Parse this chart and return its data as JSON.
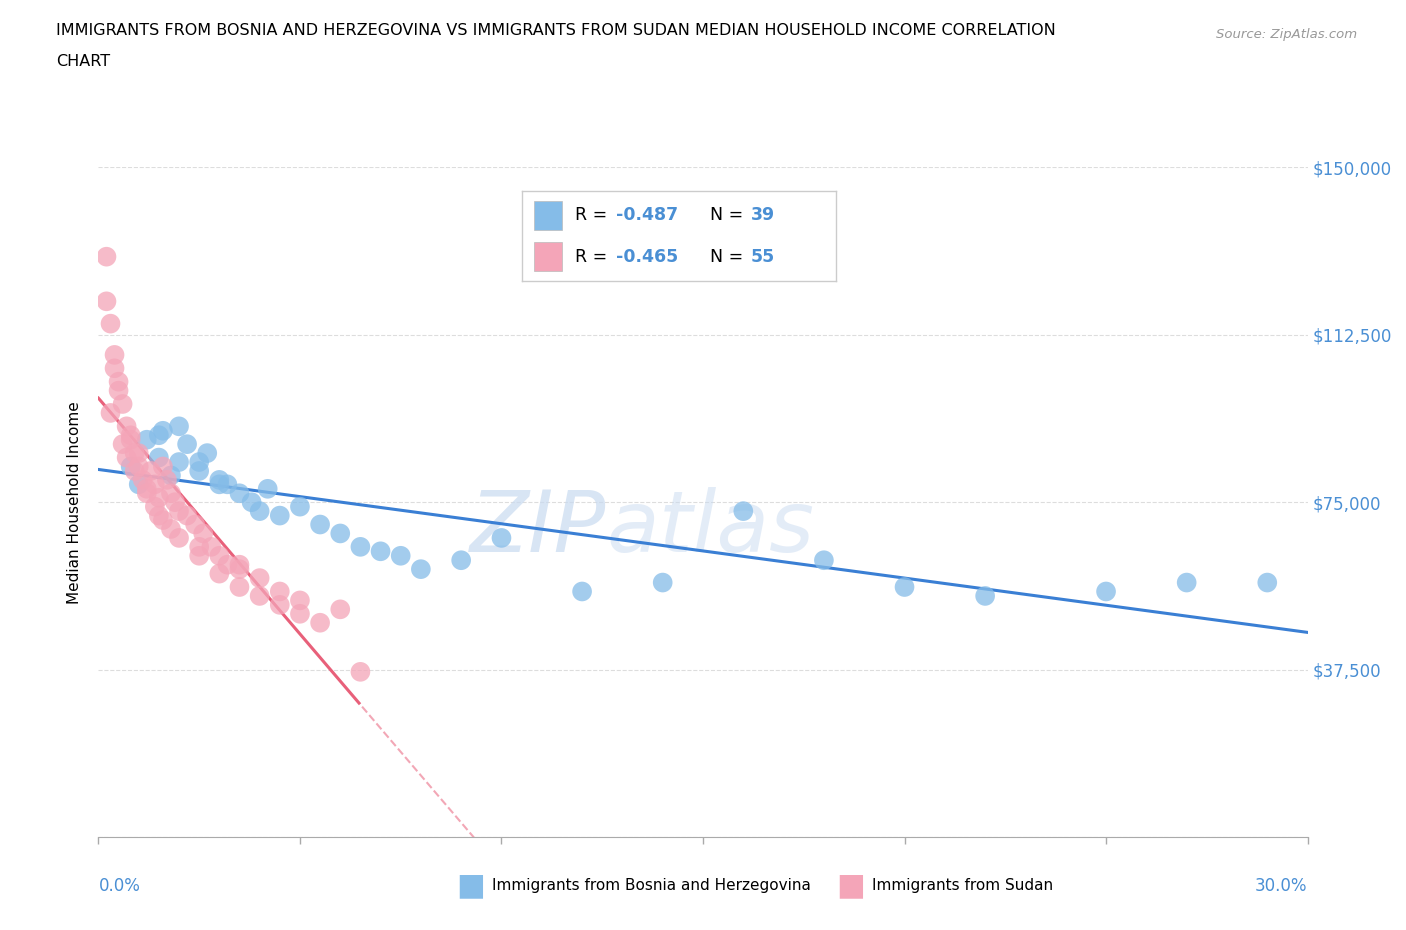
{
  "title_line1": "IMMIGRANTS FROM BOSNIA AND HERZEGOVINA VS IMMIGRANTS FROM SUDAN MEDIAN HOUSEHOLD INCOME CORRELATION",
  "title_line2": "CHART",
  "source": "Source: ZipAtlas.com",
  "ylabel": "Median Household Income",
  "xlim": [
    0.0,
    0.3
  ],
  "ylim": [
    0,
    150000
  ],
  "yticks": [
    0,
    37500,
    75000,
    112500,
    150000
  ],
  "ytick_labels": [
    "",
    "$37,500",
    "$75,000",
    "$112,500",
    "$150,000"
  ],
  "xticks": [
    0.0,
    0.05,
    0.1,
    0.15,
    0.2,
    0.25,
    0.3
  ],
  "xtick_label_left": "0.0%",
  "xtick_label_right": "30.0%",
  "watermark_zip": "ZIP",
  "watermark_atlas": "atlas",
  "bosnia_color": "#85bce8",
  "sudan_color": "#f4a5b8",
  "bosnia_line_color": "#3a7fd4",
  "sudan_line_color": "#e8607a",
  "axis_color": "#4a8fd4",
  "legend_r1": "-0.487",
  "legend_n1": "39",
  "legend_r2": "-0.465",
  "legend_n2": "55",
  "bosnia_scatter_x": [
    0.008,
    0.01,
    0.012,
    0.015,
    0.016,
    0.018,
    0.02,
    0.022,
    0.025,
    0.027,
    0.03,
    0.032,
    0.035,
    0.038,
    0.04,
    0.042,
    0.045,
    0.05,
    0.055,
    0.06,
    0.065,
    0.07,
    0.075,
    0.08,
    0.09,
    0.1,
    0.12,
    0.14,
    0.16,
    0.18,
    0.2,
    0.22,
    0.25,
    0.27,
    0.29,
    0.015,
    0.02,
    0.025,
    0.03
  ],
  "bosnia_scatter_y": [
    83000,
    79000,
    89000,
    85000,
    91000,
    81000,
    92000,
    88000,
    84000,
    86000,
    80000,
    79000,
    77000,
    75000,
    73000,
    78000,
    72000,
    74000,
    70000,
    68000,
    65000,
    64000,
    63000,
    60000,
    62000,
    67000,
    55000,
    57000,
    73000,
    62000,
    56000,
    54000,
    55000,
    57000,
    57000,
    90000,
    84000,
    82000,
    79000
  ],
  "sudan_scatter_x": [
    0.002,
    0.003,
    0.004,
    0.005,
    0.006,
    0.007,
    0.008,
    0.009,
    0.01,
    0.011,
    0.012,
    0.013,
    0.014,
    0.015,
    0.016,
    0.017,
    0.018,
    0.019,
    0.02,
    0.022,
    0.024,
    0.026,
    0.028,
    0.03,
    0.032,
    0.035,
    0.04,
    0.045,
    0.05,
    0.06,
    0.003,
    0.004,
    0.005,
    0.006,
    0.007,
    0.008,
    0.009,
    0.01,
    0.012,
    0.014,
    0.016,
    0.018,
    0.02,
    0.025,
    0.03,
    0.035,
    0.04,
    0.045,
    0.05,
    0.002,
    0.015,
    0.025,
    0.035,
    0.055,
    0.065
  ],
  "sudan_scatter_y": [
    130000,
    95000,
    105000,
    100000,
    88000,
    85000,
    90000,
    82000,
    86000,
    80000,
    78000,
    82000,
    79000,
    76000,
    83000,
    80000,
    77000,
    75000,
    73000,
    72000,
    70000,
    68000,
    65000,
    63000,
    61000,
    60000,
    58000,
    55000,
    53000,
    51000,
    115000,
    108000,
    102000,
    97000,
    92000,
    89000,
    86000,
    83000,
    77000,
    74000,
    71000,
    69000,
    67000,
    63000,
    59000,
    56000,
    54000,
    52000,
    50000,
    120000,
    72000,
    65000,
    61000,
    48000,
    37000
  ]
}
